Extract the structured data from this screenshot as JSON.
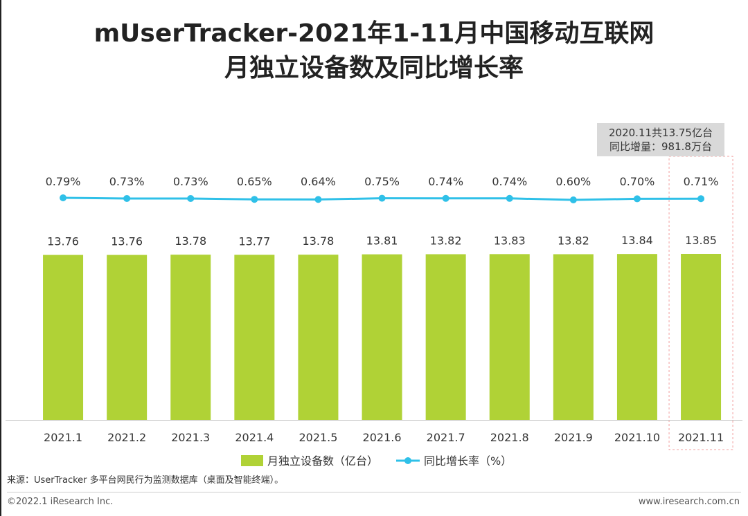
{
  "title_line1": "mUserTracker-2021年1-11月中国移动互联网",
  "title_line2": "月独立设备数及同比增长率",
  "chart_data": {
    "type": "bar",
    "categories": [
      "2021.1",
      "2021.2",
      "2021.3",
      "2021.4",
      "2021.5",
      "2021.6",
      "2021.7",
      "2021.8",
      "2021.9",
      "2021.10",
      "2021.11"
    ],
    "series": [
      {
        "name": "月独立设备数（亿台）",
        "type": "bar",
        "color": "#b0d236",
        "values": [
          13.76,
          13.76,
          13.78,
          13.77,
          13.78,
          13.81,
          13.82,
          13.83,
          13.82,
          13.84,
          13.85
        ],
        "labels": [
          "13.76",
          "13.76",
          "13.78",
          "13.77",
          "13.78",
          "13.81",
          "13.82",
          "13.83",
          "13.82",
          "13.84",
          "13.85"
        ]
      },
      {
        "name": "同比增长率（%）",
        "type": "line",
        "color": "#2fc0e8",
        "values": [
          0.79,
          0.73,
          0.73,
          0.65,
          0.64,
          0.75,
          0.74,
          0.74,
          0.6,
          0.7,
          0.71
        ],
        "labels": [
          "0.79%",
          "0.73%",
          "0.73%",
          "0.65%",
          "0.64%",
          "0.75%",
          "0.74%",
          "0.74%",
          "0.60%",
          "0.70%",
          "0.71%"
        ]
      }
    ],
    "annotation": {
      "lines": [
        "2020.11共13.75亿台",
        "同比增量：981.8万台"
      ],
      "target": "2021.11"
    },
    "legend_position": "bottom",
    "grid": false
  },
  "source": "来源：UserTracker 多平台网民行为监测数据库（桌面及智能终端）。",
  "copyright": "©2022.1 iResearch Inc.",
  "website": "www.iresearch.com.cn"
}
